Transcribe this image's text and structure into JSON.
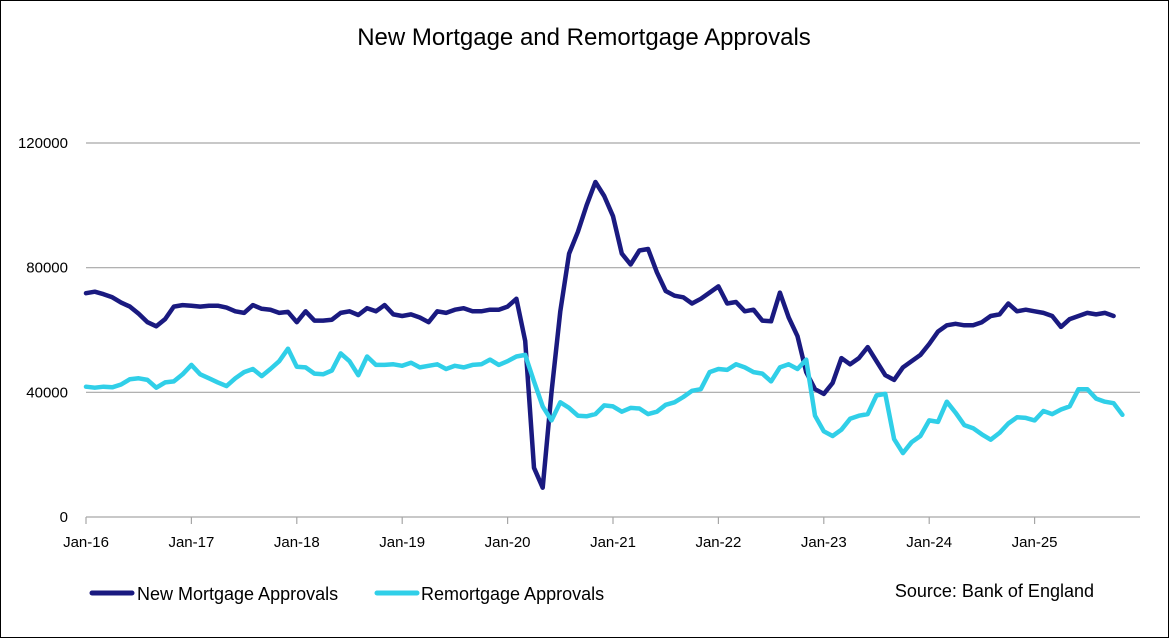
{
  "chart_data": {
    "type": "line",
    "title": "New Mortgage and Remortgage Approvals",
    "xlabel": "",
    "ylabel": "",
    "source": "Source: Bank of England",
    "ylim": [
      0,
      120000
    ],
    "yticks": [
      0,
      40000,
      80000,
      120000
    ],
    "ytick_labels": [
      "0",
      "40000",
      "80000",
      "120000"
    ],
    "xticks": [
      "Jan-16",
      "Jan-17",
      "Jan-18",
      "Jan-19",
      "Jan-20",
      "Jan-21",
      "Jan-22",
      "Jan-23",
      "Jan-24",
      "Jan-25"
    ],
    "x_start": "2016-01",
    "x_end": "2026-01",
    "grid": true,
    "legend_position": "bottom-left",
    "series": [
      {
        "name": "New Mortgage Approvals",
        "color": "#1a1a80",
        "points": [
          [
            "2016-01",
            71800
          ],
          [
            "2016-02",
            72300
          ],
          [
            "2016-03",
            71500
          ],
          [
            "2016-04",
            70500
          ],
          [
            "2016-05",
            68800
          ],
          [
            "2016-06",
            67500
          ],
          [
            "2016-07",
            65200
          ],
          [
            "2016-08",
            62500
          ],
          [
            "2016-09",
            61200
          ],
          [
            "2016-10",
            63500
          ],
          [
            "2016-11",
            67500
          ],
          [
            "2016-12",
            68000
          ],
          [
            "2017-01",
            67800
          ],
          [
            "2017-02",
            67500
          ],
          [
            "2017-03",
            67800
          ],
          [
            "2017-04",
            67800
          ],
          [
            "2017-05",
            67200
          ],
          [
            "2017-06",
            66000
          ],
          [
            "2017-07",
            65500
          ],
          [
            "2017-08",
            68000
          ],
          [
            "2017-09",
            66800
          ],
          [
            "2017-10",
            66500
          ],
          [
            "2017-11",
            65500
          ],
          [
            "2017-12",
            65800
          ],
          [
            "2018-01",
            62500
          ],
          [
            "2018-02",
            66000
          ],
          [
            "2018-03",
            63000
          ],
          [
            "2018-04",
            63000
          ],
          [
            "2018-05",
            63300
          ],
          [
            "2018-06",
            65500
          ],
          [
            "2018-07",
            66000
          ],
          [
            "2018-08",
            64800
          ],
          [
            "2018-09",
            67000
          ],
          [
            "2018-10",
            66000
          ],
          [
            "2018-11",
            68000
          ],
          [
            "2018-12",
            65000
          ],
          [
            "2019-01",
            64500
          ],
          [
            "2019-02",
            65000
          ],
          [
            "2019-03",
            64000
          ],
          [
            "2019-04",
            62500
          ],
          [
            "2019-05",
            66000
          ],
          [
            "2019-06",
            65500
          ],
          [
            "2019-07",
            66500
          ],
          [
            "2019-08",
            67000
          ],
          [
            "2019-09",
            66000
          ],
          [
            "2019-10",
            66000
          ],
          [
            "2019-11",
            66500
          ],
          [
            "2019-12",
            66500
          ],
          [
            "2020-01",
            67500
          ],
          [
            "2020-02",
            70000
          ],
          [
            "2020-03",
            56500
          ],
          [
            "2020-04",
            15800
          ],
          [
            "2020-05",
            9400
          ],
          [
            "2020-06",
            40000
          ],
          [
            "2020-07",
            66000
          ],
          [
            "2020-08",
            84500
          ],
          [
            "2020-09",
            91500
          ],
          [
            "2020-10",
            100000
          ],
          [
            "2020-11",
            107500
          ],
          [
            "2020-12",
            103000
          ],
          [
            "2021-01",
            96500
          ],
          [
            "2021-02",
            84500
          ],
          [
            "2021-03",
            81000
          ],
          [
            "2021-04",
            85500
          ],
          [
            "2021-05",
            86000
          ],
          [
            "2021-06",
            78500
          ],
          [
            "2021-07",
            72500
          ],
          [
            "2021-08",
            71000
          ],
          [
            "2021-09",
            70500
          ],
          [
            "2021-10",
            68500
          ],
          [
            "2021-11",
            70000
          ],
          [
            "2021-12",
            72000
          ],
          [
            "2022-01",
            74000
          ],
          [
            "2022-02",
            68500
          ],
          [
            "2022-03",
            69000
          ],
          [
            "2022-04",
            66000
          ],
          [
            "2022-05",
            66500
          ],
          [
            "2022-06",
            63000
          ],
          [
            "2022-07",
            62800
          ],
          [
            "2022-08",
            72000
          ],
          [
            "2022-09",
            64000
          ],
          [
            "2022-10",
            58000
          ],
          [
            "2022-11",
            46500
          ],
          [
            "2022-12",
            41000
          ],
          [
            "2023-01",
            39500
          ],
          [
            "2023-02",
            43000
          ],
          [
            "2023-03",
            51000
          ],
          [
            "2023-04",
            49000
          ],
          [
            "2023-05",
            51000
          ],
          [
            "2023-06",
            54500
          ],
          [
            "2023-07",
            50000
          ],
          [
            "2023-08",
            45500
          ],
          [
            "2023-09",
            44000
          ],
          [
            "2023-10",
            48000
          ],
          [
            "2023-11",
            50000
          ],
          [
            "2023-12",
            52000
          ],
          [
            "2024-01",
            55500
          ],
          [
            "2024-02",
            59500
          ],
          [
            "2024-03",
            61500
          ],
          [
            "2024-04",
            62000
          ],
          [
            "2024-05",
            61500
          ],
          [
            "2024-06",
            61500
          ],
          [
            "2024-07",
            62500
          ],
          [
            "2024-08",
            64500
          ],
          [
            "2024-09",
            65000
          ],
          [
            "2024-10",
            68500
          ],
          [
            "2024-11",
            66000
          ],
          [
            "2024-12",
            66500
          ],
          [
            "2025-01",
            66000
          ],
          [
            "2025-02",
            65500
          ],
          [
            "2025-03",
            64500
          ],
          [
            "2025-04",
            61000
          ],
          [
            "2025-05",
            63500
          ],
          [
            "2025-06",
            64500
          ],
          [
            "2025-07",
            65500
          ],
          [
            "2025-08",
            65000
          ],
          [
            "2025-09",
            65500
          ],
          [
            "2025-10",
            64500
          ]
        ]
      },
      {
        "name": "Remortgage Approvals",
        "color": "#30cfe8",
        "points": [
          [
            "2016-01",
            41800
          ],
          [
            "2016-02",
            41500
          ],
          [
            "2016-03",
            41800
          ],
          [
            "2016-04",
            41600
          ],
          [
            "2016-05",
            42500
          ],
          [
            "2016-06",
            44200
          ],
          [
            "2016-07",
            44500
          ],
          [
            "2016-08",
            44000
          ],
          [
            "2016-09",
            41500
          ],
          [
            "2016-10",
            43200
          ],
          [
            "2016-11",
            43500
          ],
          [
            "2016-12",
            45800
          ],
          [
            "2017-01",
            48800
          ],
          [
            "2017-02",
            45800
          ],
          [
            "2017-03",
            44500
          ],
          [
            "2017-04",
            43200
          ],
          [
            "2017-05",
            42000
          ],
          [
            "2017-06",
            44500
          ],
          [
            "2017-07",
            46500
          ],
          [
            "2017-08",
            47500
          ],
          [
            "2017-09",
            45200
          ],
          [
            "2017-10",
            47500
          ],
          [
            "2017-11",
            50000
          ],
          [
            "2017-12",
            54000
          ],
          [
            "2018-01",
            48200
          ],
          [
            "2018-02",
            48000
          ],
          [
            "2018-03",
            46000
          ],
          [
            "2018-04",
            45800
          ],
          [
            "2018-05",
            47000
          ],
          [
            "2018-06",
            52500
          ],
          [
            "2018-07",
            50000
          ],
          [
            "2018-08",
            45500
          ],
          [
            "2018-09",
            51500
          ],
          [
            "2018-10",
            48800
          ],
          [
            "2018-11",
            48800
          ],
          [
            "2018-12",
            49000
          ],
          [
            "2019-01",
            48500
          ],
          [
            "2019-02",
            49500
          ],
          [
            "2019-03",
            48000
          ],
          [
            "2019-04",
            48500
          ],
          [
            "2019-05",
            49000
          ],
          [
            "2019-06",
            47500
          ],
          [
            "2019-07",
            48500
          ],
          [
            "2019-08",
            48000
          ],
          [
            "2019-09",
            48800
          ],
          [
            "2019-10",
            49000
          ],
          [
            "2019-11",
            50500
          ],
          [
            "2019-12",
            48800
          ],
          [
            "2020-01",
            50000
          ],
          [
            "2020-02",
            51500
          ],
          [
            "2020-03",
            52000
          ],
          [
            "2020-04",
            43500
          ],
          [
            "2020-05",
            35500
          ],
          [
            "2020-06",
            31000
          ],
          [
            "2020-07",
            36800
          ],
          [
            "2020-08",
            35000
          ],
          [
            "2020-09",
            32500
          ],
          [
            "2020-10",
            32300
          ],
          [
            "2020-11",
            33000
          ],
          [
            "2020-12",
            35800
          ],
          [
            "2021-01",
            35500
          ],
          [
            "2021-02",
            33800
          ],
          [
            "2021-03",
            35000
          ],
          [
            "2021-04",
            34800
          ],
          [
            "2021-05",
            33000
          ],
          [
            "2021-06",
            33800
          ],
          [
            "2021-07",
            36000
          ],
          [
            "2021-08",
            36800
          ],
          [
            "2021-09",
            38500
          ],
          [
            "2021-10",
            40500
          ],
          [
            "2021-11",
            41000
          ],
          [
            "2021-12",
            46500
          ],
          [
            "2022-01",
            47500
          ],
          [
            "2022-02",
            47200
          ],
          [
            "2022-03",
            49000
          ],
          [
            "2022-04",
            48000
          ],
          [
            "2022-05",
            46500
          ],
          [
            "2022-06",
            46000
          ],
          [
            "2022-07",
            43500
          ],
          [
            "2022-08",
            48000
          ],
          [
            "2022-09",
            49000
          ],
          [
            "2022-10",
            47500
          ],
          [
            "2022-11",
            50500
          ],
          [
            "2022-12",
            32500
          ],
          [
            "2023-01",
            27500
          ],
          [
            "2023-02",
            26000
          ],
          [
            "2023-03",
            28000
          ],
          [
            "2023-04",
            31500
          ],
          [
            "2023-05",
            32500
          ],
          [
            "2023-06",
            33000
          ],
          [
            "2023-07",
            39000
          ],
          [
            "2023-08",
            39500
          ],
          [
            "2023-09",
            25000
          ],
          [
            "2023-10",
            20500
          ],
          [
            "2023-11",
            24000
          ],
          [
            "2023-12",
            26000
          ],
          [
            "2024-01",
            31000
          ],
          [
            "2024-02",
            30500
          ],
          [
            "2024-03",
            37000
          ],
          [
            "2024-04",
            33500
          ],
          [
            "2024-05",
            29500
          ],
          [
            "2024-06",
            28500
          ],
          [
            "2024-07",
            26500
          ],
          [
            "2024-08",
            24800
          ],
          [
            "2024-09",
            27000
          ],
          [
            "2024-10",
            30000
          ],
          [
            "2024-11",
            32000
          ],
          [
            "2024-12",
            31800
          ],
          [
            "2025-01",
            31000
          ],
          [
            "2025-02",
            34000
          ],
          [
            "2025-03",
            33000
          ],
          [
            "2025-04",
            34500
          ],
          [
            "2025-05",
            35500
          ],
          [
            "2025-06",
            41000
          ],
          [
            "2025-07",
            41000
          ],
          [
            "2025-08",
            38000
          ],
          [
            "2025-09",
            37000
          ],
          [
            "2025-10",
            36500
          ],
          [
            "2025-11",
            32800
          ]
        ]
      }
    ]
  }
}
